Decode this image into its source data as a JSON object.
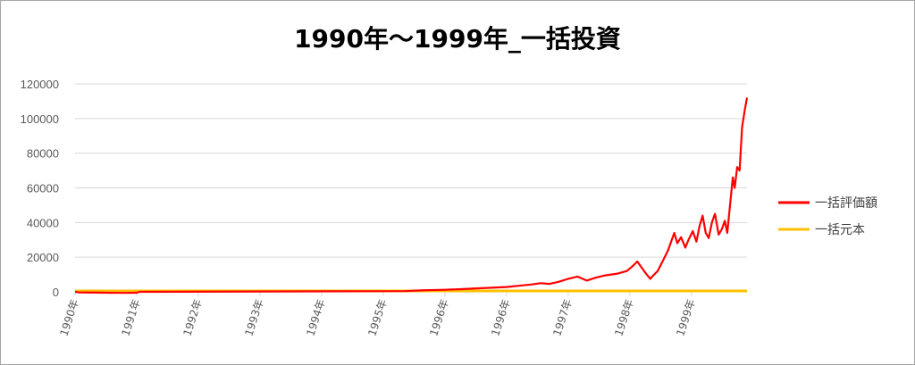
{
  "chart_data": {
    "type": "line",
    "title": "1990年〜1999年_一括投資",
    "xlabel": "",
    "ylabel": "",
    "ylim": [
      0,
      120000
    ],
    "yticks": [
      0,
      20000,
      40000,
      60000,
      80000,
      100000,
      120000
    ],
    "ytick_labels": [
      "0",
      "20000",
      "40000",
      "60000",
      "80000",
      "100000",
      "120000"
    ],
    "xtick_labels": [
      "1990年",
      "1991年",
      "1992年",
      "1993年",
      "1994年",
      "1995年",
      "1996年",
      "1996年",
      "1997年",
      "1998年",
      "1999年"
    ],
    "grid": "horizontal",
    "legend_position": "right",
    "series": [
      {
        "name": "一括評価額",
        "color": "#ff0000",
        "points": [
          [
            0,
            0
          ],
          [
            0.05,
            -300
          ],
          [
            0.5,
            -500
          ],
          [
            0.8,
            -600
          ],
          [
            1.0,
            -500
          ],
          [
            1.05,
            0
          ],
          [
            5.35,
            400
          ],
          [
            5.6,
            800
          ],
          [
            6.0,
            1200
          ],
          [
            6.3,
            1600
          ],
          [
            6.6,
            2100
          ],
          [
            7.0,
            2800
          ],
          [
            7.2,
            3500
          ],
          [
            7.4,
            4200
          ],
          [
            7.55,
            5000
          ],
          [
            7.7,
            4600
          ],
          [
            7.85,
            5800
          ],
          [
            8.0,
            7500
          ],
          [
            8.15,
            8800
          ],
          [
            8.3,
            6500
          ],
          [
            8.45,
            8200
          ],
          [
            8.6,
            9500
          ],
          [
            8.8,
            10500
          ],
          [
            8.95,
            12000
          ],
          [
            9.05,
            15000
          ],
          [
            9.12,
            17500
          ],
          [
            9.18,
            14500
          ],
          [
            9.26,
            10500
          ],
          [
            9.33,
            7500
          ],
          [
            9.38,
            9500
          ],
          [
            9.45,
            12000
          ],
          [
            9.55,
            19000
          ],
          [
            9.62,
            24000
          ],
          [
            9.68,
            30000
          ],
          [
            9.72,
            34000
          ],
          [
            9.77,
            28000
          ],
          [
            9.83,
            31500
          ],
          [
            9.9,
            25500
          ],
          [
            9.95,
            30000
          ],
          [
            10.02,
            35000
          ],
          [
            10.08,
            29000
          ],
          [
            10.13,
            38000
          ],
          [
            10.18,
            44000
          ],
          [
            10.23,
            34000
          ],
          [
            10.28,
            31000
          ],
          [
            10.33,
            40000
          ],
          [
            10.38,
            45000
          ],
          [
            10.44,
            33000
          ],
          [
            10.49,
            36000
          ],
          [
            10.54,
            41000
          ],
          [
            10.58,
            34000
          ],
          [
            10.63,
            52000
          ],
          [
            10.67,
            66000
          ],
          [
            10.7,
            60000
          ],
          [
            10.74,
            72000
          ],
          [
            10.78,
            70000
          ],
          [
            10.82,
            95000
          ],
          [
            10.86,
            104000
          ],
          [
            10.9,
            112000
          ]
        ]
      },
      {
        "name": "一括元本",
        "color": "#ffc000",
        "points": [
          [
            0,
            500
          ],
          [
            10.9,
            500
          ]
        ]
      }
    ]
  }
}
